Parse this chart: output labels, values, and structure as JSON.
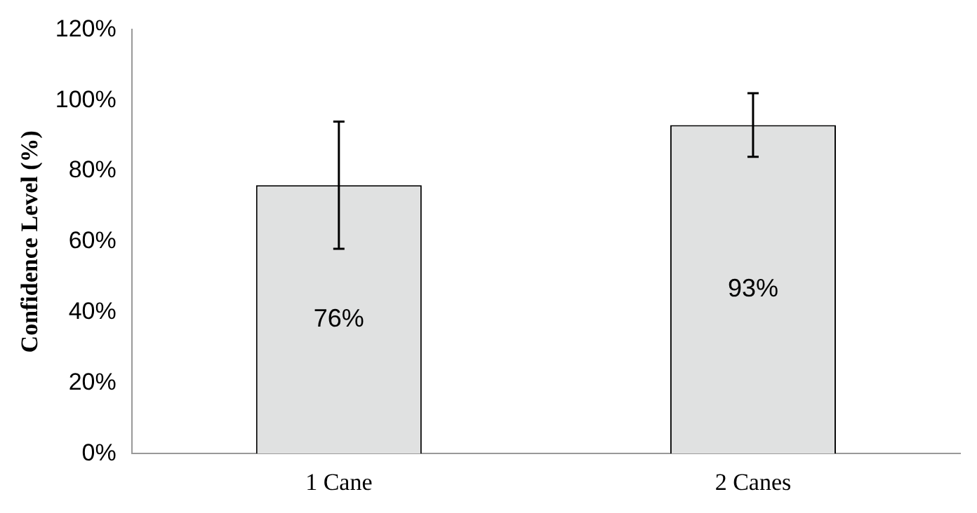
{
  "chart_data": {
    "type": "bar",
    "ylabel": "Confidence Level (%)",
    "categories": [
      "1 Cane",
      "2 Canes"
    ],
    "values": [
      76,
      93
    ],
    "color": "#e0e1e1",
    "errors": [
      18,
      9
    ],
    "value_labels": [
      "76%",
      "93%"
    ],
    "ylim": [
      0,
      120
    ],
    "yticks": [
      {
        "value": 0,
        "label": "0%"
      },
      {
        "value": 20,
        "label": "20%"
      },
      {
        "value": 40,
        "label": "40%"
      },
      {
        "value": 60,
        "label": "60%"
      },
      {
        "value": 80,
        "label": "80%"
      },
      {
        "value": 100,
        "label": "100%"
      },
      {
        "value": 120,
        "label": "120%"
      }
    ],
    "grid": false,
    "legend": false
  }
}
